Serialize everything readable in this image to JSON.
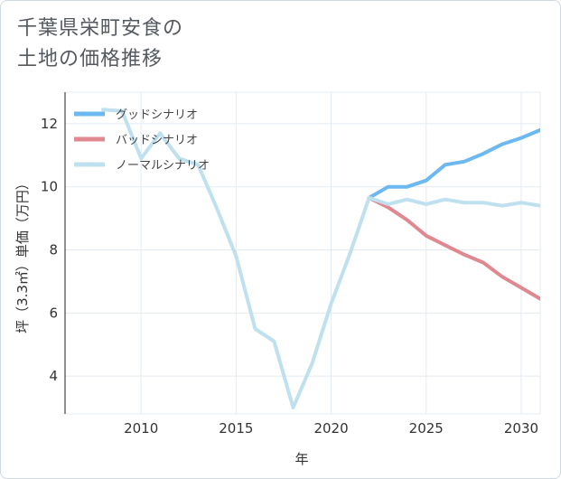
{
  "title_line1": "千葉県栄町安食の",
  "title_line2": "土地の価格推移",
  "chart_data": {
    "type": "line",
    "title": "千葉県栄町安食の土地の価格推移",
    "xlabel": "年",
    "ylabel": "坪（3.3㎡）単価（万円）",
    "xlim": [
      2006,
      2031
    ],
    "ylim": [
      2.8,
      13.0
    ],
    "x_ticks": [
      2010,
      2015,
      2020,
      2025,
      2030
    ],
    "y_ticks": [
      4,
      6,
      8,
      10,
      12
    ],
    "grid": true,
    "legend_position": "top-left",
    "series": [
      {
        "name": "グッドシナリオ",
        "color": "#6cb8f0",
        "x": [
          2022,
          2023,
          2024,
          2025,
          2026,
          2027,
          2028,
          2029,
          2030,
          2031
        ],
        "y": [
          9.65,
          10.0,
          10.0,
          10.2,
          10.7,
          10.8,
          11.05,
          11.35,
          11.55,
          11.8
        ]
      },
      {
        "name": "バッドシナリオ",
        "color": "#e08890",
        "x": [
          2022,
          2023,
          2024,
          2025,
          2026,
          2027,
          2028,
          2029,
          2030,
          2031
        ],
        "y": [
          9.65,
          9.35,
          8.95,
          8.45,
          8.15,
          7.85,
          7.6,
          7.15,
          6.8,
          6.45
        ]
      },
      {
        "name": "ノーマルシナリオ",
        "color": "#bfe0ee",
        "x": [
          2008,
          2009,
          2010,
          2011,
          2012,
          2013,
          2014,
          2015,
          2016,
          2017,
          2018,
          2019,
          2020,
          2021,
          2022,
          2023,
          2024,
          2025,
          2026,
          2027,
          2028,
          2029,
          2030,
          2031
        ],
        "y": [
          12.45,
          12.4,
          10.9,
          11.7,
          10.9,
          10.7,
          9.3,
          7.8,
          5.5,
          5.1,
          3.0,
          4.4,
          6.3,
          7.9,
          9.65,
          9.45,
          9.6,
          9.45,
          9.6,
          9.5,
          9.5,
          9.4,
          9.5,
          9.4
        ]
      }
    ]
  }
}
